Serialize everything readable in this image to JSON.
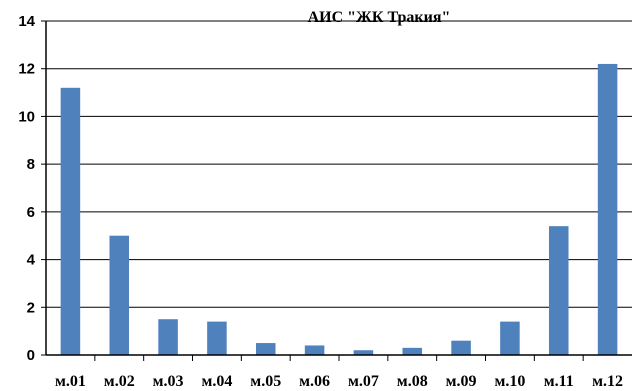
{
  "chart_data": {
    "type": "bar",
    "title": "АИС \"ЖК Тракия\"",
    "categories": [
      "м.01",
      "м.02",
      "м.03",
      "м.04",
      "м.05",
      "м.06",
      "м.07",
      "м.08",
      "м.09",
      "м.10",
      "м.11",
      "м.12"
    ],
    "values": [
      11.2,
      5.0,
      1.5,
      1.4,
      0.5,
      0.4,
      0.2,
      0.3,
      0.6,
      1.4,
      5.4,
      12.2
    ],
    "ylim": [
      0,
      14
    ],
    "yticks": [
      "0",
      "2",
      "4",
      "6",
      "8",
      "10",
      "12",
      "14"
    ],
    "grid": true,
    "legend": "none",
    "bar_color": "#4f81bd"
  }
}
